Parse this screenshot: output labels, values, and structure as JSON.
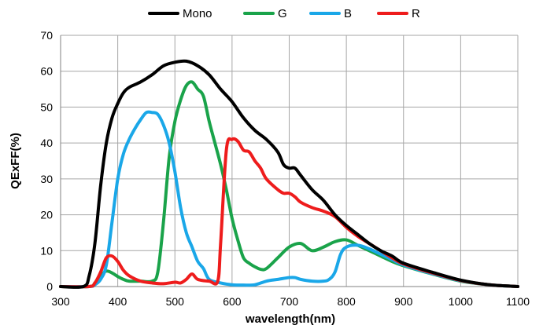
{
  "chart_data": {
    "type": "line",
    "title": "",
    "xlabel": "wavelength(nm)",
    "ylabel": "QExFF(%)",
    "xlim": [
      300,
      1100
    ],
    "ylim": [
      0,
      70
    ],
    "x_ticks": [
      300,
      400,
      500,
      600,
      700,
      800,
      900,
      1000,
      1100
    ],
    "y_ticks": [
      0,
      10,
      20,
      30,
      40,
      50,
      60,
      70
    ],
    "grid": true,
    "legend_position": "top",
    "series": [
      {
        "name": "Mono",
        "color": "#000000",
        "points": [
          [
            300,
            0
          ],
          [
            340,
            0
          ],
          [
            350,
            3
          ],
          [
            360,
            12
          ],
          [
            370,
            28
          ],
          [
            380,
            40
          ],
          [
            390,
            47
          ],
          [
            400,
            51
          ],
          [
            410,
            54
          ],
          [
            420,
            55.5
          ],
          [
            440,
            57
          ],
          [
            460,
            59
          ],
          [
            480,
            61.5
          ],
          [
            500,
            62.5
          ],
          [
            520,
            62.8
          ],
          [
            540,
            61.5
          ],
          [
            560,
            59
          ],
          [
            580,
            55
          ],
          [
            600,
            51.5
          ],
          [
            620,
            47
          ],
          [
            640,
            43.5
          ],
          [
            660,
            41
          ],
          [
            680,
            37.5
          ],
          [
            690,
            34
          ],
          [
            700,
            33
          ],
          [
            710,
            33
          ],
          [
            720,
            31
          ],
          [
            740,
            27
          ],
          [
            760,
            24
          ],
          [
            780,
            20
          ],
          [
            800,
            17
          ],
          [
            820,
            14.5
          ],
          [
            840,
            12
          ],
          [
            860,
            10
          ],
          [
            880,
            8.5
          ],
          [
            900,
            6.5
          ],
          [
            950,
            4
          ],
          [
            1000,
            1.8
          ],
          [
            1050,
            0.5
          ],
          [
            1100,
            0
          ]
        ]
      },
      {
        "name": "G",
        "color": "#1aa34a",
        "points": [
          [
            300,
            0
          ],
          [
            350,
            0
          ],
          [
            360,
            1
          ],
          [
            370,
            3
          ],
          [
            380,
            4.3
          ],
          [
            390,
            3.8
          ],
          [
            400,
            2.8
          ],
          [
            410,
            2
          ],
          [
            420,
            1.5
          ],
          [
            440,
            1.5
          ],
          [
            460,
            1.5
          ],
          [
            470,
            4
          ],
          [
            480,
            18
          ],
          [
            490,
            36
          ],
          [
            500,
            46
          ],
          [
            510,
            52
          ],
          [
            520,
            56
          ],
          [
            530,
            57
          ],
          [
            540,
            55
          ],
          [
            550,
            53
          ],
          [
            560,
            46
          ],
          [
            570,
            40
          ],
          [
            580,
            34
          ],
          [
            590,
            27
          ],
          [
            600,
            19
          ],
          [
            610,
            13
          ],
          [
            620,
            8
          ],
          [
            630,
            6.5
          ],
          [
            640,
            5.5
          ],
          [
            650,
            4.8
          ],
          [
            660,
            5
          ],
          [
            680,
            8
          ],
          [
            700,
            11
          ],
          [
            720,
            12
          ],
          [
            740,
            10
          ],
          [
            760,
            11
          ],
          [
            780,
            12.5
          ],
          [
            800,
            13
          ],
          [
            820,
            11.5
          ],
          [
            840,
            10
          ],
          [
            860,
            8.5
          ],
          [
            880,
            7
          ],
          [
            900,
            5.8
          ],
          [
            950,
            3.5
          ],
          [
            1000,
            1.5
          ],
          [
            1050,
            0.5
          ],
          [
            1100,
            0
          ]
        ]
      },
      {
        "name": "B",
        "color": "#1aa7e8",
        "points": [
          [
            300,
            0
          ],
          [
            350,
            0
          ],
          [
            360,
            0.5
          ],
          [
            370,
            2
          ],
          [
            380,
            6
          ],
          [
            390,
            18
          ],
          [
            400,
            30
          ],
          [
            410,
            37
          ],
          [
            420,
            41
          ],
          [
            430,
            44
          ],
          [
            440,
            46.5
          ],
          [
            450,
            48.5
          ],
          [
            460,
            48.5
          ],
          [
            470,
            48
          ],
          [
            480,
            45
          ],
          [
            490,
            40
          ],
          [
            500,
            32
          ],
          [
            510,
            22
          ],
          [
            520,
            15
          ],
          [
            530,
            11
          ],
          [
            540,
            7
          ],
          [
            550,
            5
          ],
          [
            560,
            2
          ],
          [
            580,
            1
          ],
          [
            600,
            0.5
          ],
          [
            620,
            0.4
          ],
          [
            640,
            0.5
          ],
          [
            660,
            1.5
          ],
          [
            680,
            2
          ],
          [
            700,
            2.5
          ],
          [
            710,
            2.5
          ],
          [
            720,
            2
          ],
          [
            740,
            1.5
          ],
          [
            760,
            1.5
          ],
          [
            770,
            2
          ],
          [
            780,
            4
          ],
          [
            790,
            9
          ],
          [
            800,
            11
          ],
          [
            820,
            11.5
          ],
          [
            840,
            10.5
          ],
          [
            860,
            9
          ],
          [
            880,
            7.5
          ],
          [
            900,
            6
          ],
          [
            950,
            3.6
          ],
          [
            1000,
            1.6
          ],
          [
            1050,
            0.5
          ],
          [
            1100,
            0
          ]
        ]
      },
      {
        "name": "R",
        "color": "#ee1c1c",
        "points": [
          [
            300,
            0
          ],
          [
            350,
            0
          ],
          [
            360,
            1
          ],
          [
            370,
            4
          ],
          [
            380,
            8
          ],
          [
            390,
            8.5
          ],
          [
            400,
            7
          ],
          [
            410,
            4.5
          ],
          [
            420,
            3
          ],
          [
            440,
            1.5
          ],
          [
            460,
            1
          ],
          [
            480,
            0.8
          ],
          [
            500,
            1.2
          ],
          [
            510,
            1
          ],
          [
            520,
            2
          ],
          [
            530,
            3.5
          ],
          [
            540,
            2
          ],
          [
            560,
            1.5
          ],
          [
            575,
            1.5
          ],
          [
            580,
            12
          ],
          [
            590,
            38
          ],
          [
            600,
            41
          ],
          [
            610,
            40.5
          ],
          [
            620,
            38
          ],
          [
            630,
            37.5
          ],
          [
            640,
            35
          ],
          [
            650,
            33
          ],
          [
            660,
            30
          ],
          [
            680,
            27
          ],
          [
            690,
            26
          ],
          [
            700,
            26
          ],
          [
            710,
            25
          ],
          [
            720,
            23.5
          ],
          [
            740,
            22
          ],
          [
            760,
            21
          ],
          [
            780,
            19.5
          ],
          [
            800,
            16.5
          ],
          [
            820,
            14
          ],
          [
            840,
            12
          ],
          [
            860,
            10
          ],
          [
            880,
            8
          ],
          [
            900,
            6.3
          ],
          [
            950,
            3.8
          ],
          [
            1000,
            1.7
          ],
          [
            1050,
            0.5
          ],
          [
            1100,
            0
          ]
        ]
      }
    ]
  }
}
